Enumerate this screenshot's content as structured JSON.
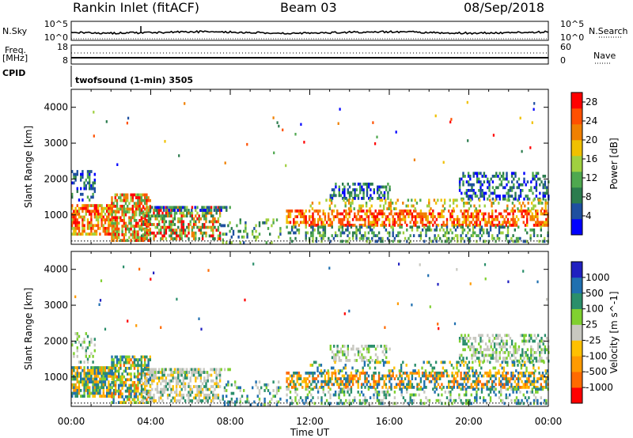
{
  "header": {
    "radar": "Rankin Inlet (fitACF)",
    "beam": "Beam 03",
    "date": "08/Sep/2018"
  },
  "noise_panel": {
    "left_label": "N.Sky",
    "right_label": "N.Search",
    "left_ticks": [
      "10^5",
      "10^0"
    ],
    "right_ticks": [
      "10^5",
      "10^0"
    ]
  },
  "freq_panel": {
    "left_label_1": "Freq.",
    "left_label_2": "[MHz]",
    "right_label": "Nave",
    "left_ticks": [
      "18",
      "8"
    ],
    "right_ticks": [
      "60",
      "0"
    ]
  },
  "cpid_panel": {
    "label": "CPID",
    "mode_text": "twofsound (1-min) 3505"
  },
  "colors": {
    "power": [
      "#0000ff",
      "#1e4fa0",
      "#2b7c4e",
      "#4fa84f",
      "#a0d040",
      "#f0c000",
      "#f08000",
      "#ff5000",
      "#ff0000"
    ],
    "velocity": [
      "#ff0000",
      "#ff6a00",
      "#ff9a00",
      "#ffc000",
      "#c8c8c0",
      "#80d030",
      "#2b8f6b",
      "#2070b0",
      "#2020c0"
    ]
  },
  "chart_data": [
    {
      "type": "heatmap",
      "name": "power",
      "xlabel": "",
      "ylabel": "Slant Range [km]",
      "x_range_hours": [
        0,
        24
      ],
      "y_range_km": [
        180,
        4500
      ],
      "y_ticks": [
        1000,
        2000,
        3000,
        4000
      ],
      "colorbar_label": "Power [dB]",
      "colorbar_ticks": [
        4,
        8,
        12,
        16,
        20,
        24,
        28
      ],
      "colorbar_range": [
        0,
        30
      ]
    },
    {
      "type": "heatmap",
      "name": "velocity",
      "xlabel": "Time UT",
      "ylabel": "Slant Range [km]",
      "x_range_hours": [
        0,
        24
      ],
      "x_ticks": [
        "00:00",
        "04:00",
        "08:00",
        "12:00",
        "16:00",
        "20:00",
        "00:00"
      ],
      "y_range_km": [
        180,
        4500
      ],
      "y_ticks": [
        1000,
        2000,
        3000,
        4000
      ],
      "colorbar_label": "Velocity [m s^-1]",
      "colorbar_ticks": [
        "1000",
        "500",
        "100",
        "25",
        "-25",
        "-100",
        "-500",
        "-1000"
      ]
    }
  ]
}
